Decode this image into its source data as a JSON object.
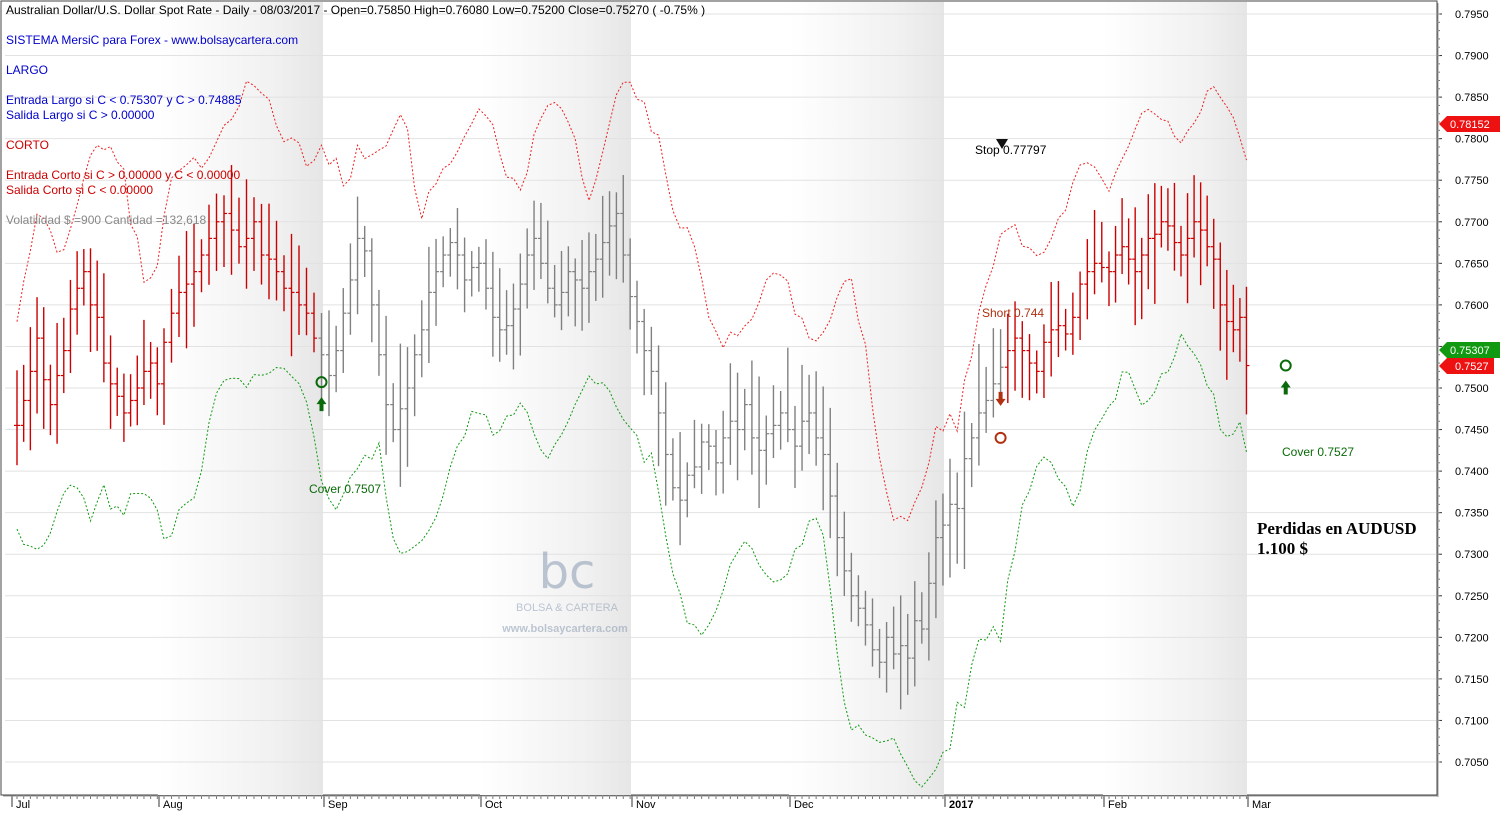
{
  "header": {
    "line1": "Australian Dollar/U.S. Dollar Spot Rate - Daily - 08/03/2017 -   Open=0.75850   High=0.76080   Low=0.75200   Close=0.75270   ( -0.75% )",
    "system": "SISTEMA MersiC para Forex  -  www.bolsaycartera.com",
    "largo": "LARGO",
    "entrada_largo": "Entrada Largo si C < 0.75307  y  C > 0.74885",
    "salida_largo": "Salida Largo si    C > 0.00000",
    "corto": "CORTO",
    "entrada_corto": "Entrada Corto si  C > 0.00000  y  C < 0.00000",
    "salida_corto": "Salida Corto si    C < 0.00000",
    "volatilidad": "Volatilidad $ =900  Cantidad =132,618"
  },
  "annotations": {
    "stop": "Stop 0.77797",
    "short": "Short 0.744",
    "cover1": "Cover 0.7507",
    "cover2": "Cover 0.7527",
    "perdidas_line1": "Perdidas en AUDUSD",
    "perdidas_line2": "1.100 $"
  },
  "watermark": {
    "logo": "bc",
    "name": "BOLSA & CARTERA",
    "url": "www.bolsaycartera.com"
  },
  "price_tags": {
    "upper": "0.78152",
    "mid": "0.75307",
    "close": "0.7527"
  },
  "colors": {
    "bull": "#cc0000",
    "neutral": "#808080",
    "upper_band": "#ee2222",
    "lower_band": "#119911",
    "header_blue": "#0000cc",
    "header_red": "#cc0000",
    "tag_red": "#ee1111",
    "tag_green": "#119911"
  },
  "chart_data": {
    "type": "ohlc",
    "x_labels": [
      "Jul",
      "Aug",
      "Sep",
      "Oct",
      "Nov",
      "Dec",
      "2017",
      "Feb",
      "Mar"
    ],
    "y_ticks": [
      "0.7950",
      "0.7900",
      "0.7850",
      "0.7800",
      "0.7750",
      "0.7700",
      "0.7650",
      "0.7600",
      "0.7550",
      "0.7500",
      "0.7450",
      "0.7400",
      "0.7350",
      "0.7300",
      "0.7250",
      "0.7200",
      "0.7150",
      "0.7100",
      "0.7050"
    ],
    "ylim": [
      0.702,
      0.7965
    ],
    "bars_per_month": 22,
    "month_start_index": [
      0,
      22,
      44,
      66,
      88,
      110,
      132,
      154,
      176
    ],
    "closes": [
      0.7455,
      0.7485,
      0.752,
      0.756,
      0.751,
      0.748,
      0.7515,
      0.7545,
      0.7595,
      0.762,
      0.764,
      0.76,
      0.7585,
      0.753,
      0.7505,
      0.749,
      0.747,
      0.7485,
      0.75,
      0.752,
      0.753,
      0.7505,
      0.7555,
      0.759,
      0.7615,
      0.7625,
      0.764,
      0.766,
      0.768,
      0.77,
      0.771,
      0.769,
      0.767,
      0.768,
      0.77,
      0.766,
      0.7655,
      0.764,
      0.762,
      0.7615,
      0.76,
      0.759,
      0.756,
      0.754,
      0.7515,
      0.7545,
      0.759,
      0.763,
      0.768,
      0.7665,
      0.76,
      0.754,
      0.748,
      0.745,
      0.7475,
      0.75,
      0.754,
      0.757,
      0.7615,
      0.764,
      0.766,
      0.7675,
      0.766,
      0.763,
      0.7645,
      0.765,
      0.762,
      0.7585,
      0.757,
      0.7575,
      0.7595,
      0.7625,
      0.766,
      0.768,
      0.765,
      0.762,
      0.76,
      0.7615,
      0.764,
      0.763,
      0.762,
      0.764,
      0.7655,
      0.7675,
      0.7695,
      0.771,
      0.766,
      0.761,
      0.758,
      0.7545,
      0.752,
      0.747,
      0.742,
      0.738,
      0.7365,
      0.7395,
      0.7405,
      0.7435,
      0.743,
      0.741,
      0.744,
      0.746,
      0.745,
      0.748,
      0.744,
      0.7425,
      0.7445,
      0.7455,
      0.747,
      0.745,
      0.743,
      0.746,
      0.747,
      0.744,
      0.742,
      0.737,
      0.732,
      0.728,
      0.725,
      0.7235,
      0.7215,
      0.7185,
      0.717,
      0.72,
      0.718,
      0.719,
      0.7175,
      0.722,
      0.721,
      0.7265,
      0.732,
      0.7335,
      0.736,
      0.7355,
      0.7415,
      0.744,
      0.747,
      0.7485,
      0.7505,
      0.7525,
      0.7545,
      0.756,
      0.7545,
      0.753,
      0.752,
      0.7555,
      0.757,
      0.7575,
      0.7565,
      0.7585,
      0.7625,
      0.764,
      0.765,
      0.7645,
      0.764,
      0.766,
      0.767,
      0.7655,
      0.764,
      0.766,
      0.768,
      0.7685,
      0.77,
      0.7695,
      0.7675,
      0.766,
      0.768,
      0.77,
      0.769,
      0.767,
      0.7655,
      0.76,
      0.758,
      0.757,
      0.7585,
      0.7527
    ],
    "signals": [
      {
        "label": "Cover 0.7507",
        "bar": 43,
        "value": 0.7507,
        "kind": "cover"
      },
      {
        "label": "Short 0.744",
        "bar": 139,
        "value": 0.744,
        "kind": "short"
      },
      {
        "label": "Cover 0.7527",
        "bar": 181,
        "value": 0.7527,
        "kind": "cover"
      }
    ],
    "grid": true
  }
}
